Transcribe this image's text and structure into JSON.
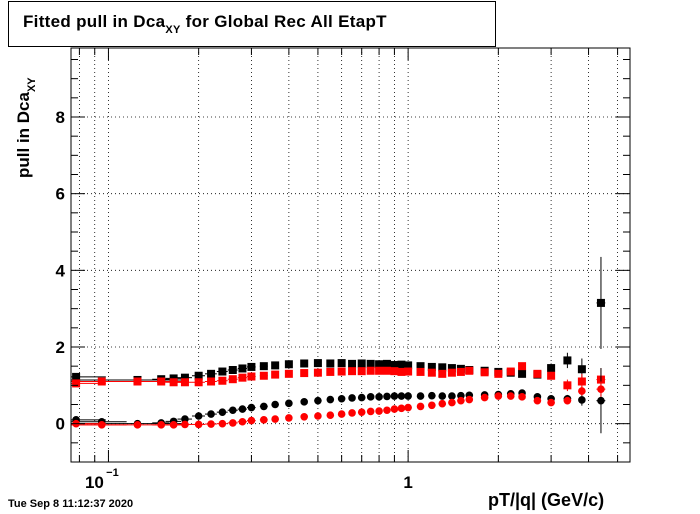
{
  "title": {
    "main": "Fitted pull in Dca",
    "sub": "XY",
    "rest": " for Global Rec All EtapT"
  },
  "timestamp": "Tue Sep  8 11:12:37 2020",
  "chart_data": {
    "type": "scatter",
    "title": "Fitted pull in Dca_XY for Global Rec All EtapT",
    "xlabel": "pT/|q| (GeV/c)",
    "ylabel": {
      "main": "pull in Dca",
      "sub": "XY"
    },
    "xscale": "log",
    "xlim": [
      0.075,
      5.5
    ],
    "ylim": [
      -1,
      9.8
    ],
    "x_ticks": [
      {
        "value": 0.1,
        "base": "10",
        "exp": "−1"
      },
      {
        "value": 1,
        "base": "1",
        "exp": ""
      }
    ],
    "y_ticks": [
      0,
      2,
      4,
      6,
      8
    ],
    "grid": true,
    "colors": {
      "black": "#000000",
      "red": "#ff0000"
    },
    "series": [
      {
        "marker": "square",
        "color": "#000000",
        "x": [
          0.078,
          0.125,
          0.15,
          0.165,
          0.18,
          0.2,
          0.22,
          0.24,
          0.26,
          0.28,
          0.3,
          0.33,
          0.36,
          0.4,
          0.45,
          0.5,
          0.55,
          0.6,
          0.65,
          0.7,
          0.75,
          0.8,
          0.85,
          0.9,
          0.95,
          1.0,
          1.1,
          1.2,
          1.3,
          1.4,
          1.5,
          1.6,
          1.8,
          2.0,
          2.2,
          2.4,
          2.7,
          3.0,
          3.4,
          3.8,
          4.4
        ],
        "y": [
          1.22,
          1.14,
          1.16,
          1.18,
          1.2,
          1.25,
          1.3,
          1.36,
          1.4,
          1.44,
          1.48,
          1.5,
          1.52,
          1.55,
          1.57,
          1.58,
          1.57,
          1.58,
          1.56,
          1.57,
          1.56,
          1.55,
          1.56,
          1.53,
          1.54,
          1.52,
          1.5,
          1.48,
          1.47,
          1.45,
          1.43,
          1.4,
          1.38,
          1.35,
          1.33,
          1.3,
          1.28,
          1.45,
          1.65,
          1.42,
          3.15
        ],
        "yerr": [
          0.05,
          0.04,
          0.03,
          0.03,
          0.02,
          0.02,
          0.02,
          0.02,
          0.02,
          0.02,
          0.02,
          0.02,
          0.02,
          0.02,
          0.02,
          0.02,
          0.02,
          0.02,
          0.02,
          0.02,
          0.02,
          0.02,
          0.02,
          0.02,
          0.02,
          0.02,
          0.02,
          0.03,
          0.03,
          0.03,
          0.03,
          0.04,
          0.04,
          0.05,
          0.06,
          0.08,
          0.1,
          0.12,
          0.2,
          0.28,
          1.2
        ],
        "xerr": [
          0.02,
          0.06,
          0.01,
          0.01,
          0.01,
          0.01,
          0.01,
          0.01,
          0.01,
          0.01,
          0.01,
          0.01,
          0.01,
          0.01,
          0.01,
          0.01,
          0.01,
          0.01,
          0.01,
          0.01,
          0.01,
          0.01,
          0.01,
          0.01,
          0.01,
          0.01,
          0.02,
          0.02,
          0.02,
          0.02,
          0.02,
          0.03,
          0.03,
          0.04,
          0.05,
          0.06,
          0.07,
          0.08,
          0.1,
          0.1,
          0.15
        ]
      },
      {
        "marker": "square",
        "color": "#ff0000",
        "x": [
          0.078,
          0.095,
          0.125,
          0.15,
          0.165,
          0.18,
          0.2,
          0.22,
          0.24,
          0.26,
          0.28,
          0.3,
          0.33,
          0.36,
          0.4,
          0.45,
          0.5,
          0.55,
          0.6,
          0.65,
          0.7,
          0.75,
          0.8,
          0.85,
          0.9,
          0.95,
          1.0,
          1.1,
          1.2,
          1.3,
          1.4,
          1.5,
          1.6,
          1.8,
          2.0,
          2.2,
          2.4,
          2.7,
          3.0,
          3.4,
          3.8,
          4.4
        ],
        "y": [
          1.05,
          1.1,
          1.1,
          1.1,
          1.08,
          1.08,
          1.08,
          1.1,
          1.12,
          1.16,
          1.2,
          1.23,
          1.25,
          1.28,
          1.3,
          1.32,
          1.33,
          1.35,
          1.36,
          1.37,
          1.37,
          1.38,
          1.38,
          1.38,
          1.37,
          1.35,
          1.36,
          1.35,
          1.33,
          1.3,
          1.33,
          1.35,
          1.38,
          1.34,
          1.3,
          1.36,
          1.5,
          1.3,
          1.25,
          1.0,
          1.1,
          1.15
        ],
        "yerr": [
          0.04,
          0.03,
          0.03,
          0.02,
          0.02,
          0.02,
          0.02,
          0.02,
          0.02,
          0.02,
          0.02,
          0.02,
          0.02,
          0.02,
          0.02,
          0.02,
          0.02,
          0.02,
          0.02,
          0.02,
          0.02,
          0.02,
          0.02,
          0.02,
          0.02,
          0.02,
          0.02,
          0.02,
          0.02,
          0.02,
          0.02,
          0.03,
          0.03,
          0.03,
          0.04,
          0.05,
          0.07,
          0.08,
          0.1,
          0.15,
          0.2,
          0.3
        ],
        "xerr": [
          0.02,
          0.02,
          0.06,
          0.01,
          0.01,
          0.01,
          0.01,
          0.01,
          0.01,
          0.01,
          0.01,
          0.01,
          0.01,
          0.01,
          0.01,
          0.01,
          0.01,
          0.01,
          0.01,
          0.01,
          0.01,
          0.01,
          0.01,
          0.01,
          0.01,
          0.01,
          0.01,
          0.02,
          0.02,
          0.02,
          0.02,
          0.02,
          0.03,
          0.03,
          0.04,
          0.05,
          0.06,
          0.07,
          0.08,
          0.1,
          0.1,
          0.15
        ]
      },
      {
        "marker": "circle",
        "color": "#000000",
        "x": [
          0.078,
          0.095,
          0.125,
          0.15,
          0.165,
          0.18,
          0.2,
          0.22,
          0.24,
          0.26,
          0.28,
          0.3,
          0.33,
          0.36,
          0.4,
          0.45,
          0.5,
          0.55,
          0.6,
          0.65,
          0.7,
          0.75,
          0.8,
          0.85,
          0.9,
          0.95,
          1.0,
          1.1,
          1.2,
          1.3,
          1.4,
          1.5,
          1.6,
          1.8,
          2.0,
          2.2,
          2.4,
          2.7,
          3.0,
          3.4,
          3.8,
          4.4
        ],
        "y": [
          0.1,
          0.05,
          0.0,
          0.02,
          0.06,
          0.12,
          0.2,
          0.25,
          0.3,
          0.35,
          0.38,
          0.42,
          0.45,
          0.5,
          0.53,
          0.57,
          0.6,
          0.63,
          0.65,
          0.67,
          0.68,
          0.7,
          0.7,
          0.71,
          0.72,
          0.72,
          0.72,
          0.72,
          0.73,
          0.72,
          0.72,
          0.73,
          0.74,
          0.75,
          0.76,
          0.78,
          0.8,
          0.7,
          0.65,
          0.65,
          0.62,
          0.6
        ],
        "yerr": [
          0.04,
          0.03,
          0.03,
          0.02,
          0.02,
          0.02,
          0.02,
          0.02,
          0.02,
          0.02,
          0.02,
          0.02,
          0.02,
          0.02,
          0.02,
          0.02,
          0.02,
          0.02,
          0.02,
          0.02,
          0.02,
          0.02,
          0.02,
          0.02,
          0.02,
          0.02,
          0.02,
          0.02,
          0.02,
          0.02,
          0.02,
          0.03,
          0.03,
          0.03,
          0.04,
          0.05,
          0.06,
          0.07,
          0.08,
          0.1,
          0.15,
          0.85
        ],
        "xerr": [
          0.02,
          0.02,
          0.06,
          0.01,
          0.01,
          0.01,
          0.01,
          0.01,
          0.01,
          0.01,
          0.01,
          0.01,
          0.01,
          0.01,
          0.01,
          0.01,
          0.01,
          0.01,
          0.01,
          0.01,
          0.01,
          0.01,
          0.01,
          0.01,
          0.01,
          0.01,
          0.01,
          0.02,
          0.02,
          0.02,
          0.02,
          0.02,
          0.03,
          0.03,
          0.04,
          0.05,
          0.06,
          0.07,
          0.08,
          0.1,
          0.1,
          0.15
        ]
      },
      {
        "marker": "circle",
        "color": "#ff0000",
        "x": [
          0.078,
          0.095,
          0.125,
          0.15,
          0.165,
          0.18,
          0.2,
          0.22,
          0.24,
          0.26,
          0.28,
          0.3,
          0.33,
          0.36,
          0.4,
          0.45,
          0.5,
          0.55,
          0.6,
          0.65,
          0.7,
          0.75,
          0.8,
          0.85,
          0.9,
          0.95,
          1.0,
          1.1,
          1.2,
          1.3,
          1.4,
          1.5,
          1.6,
          1.8,
          2.0,
          2.2,
          2.4,
          2.7,
          3.0,
          3.4,
          3.8,
          4.4
        ],
        "y": [
          0.0,
          -0.03,
          -0.03,
          -0.03,
          -0.03,
          -0.02,
          -0.02,
          -0.01,
          0.0,
          0.02,
          0.05,
          0.08,
          0.1,
          0.12,
          0.15,
          0.18,
          0.2,
          0.22,
          0.25,
          0.28,
          0.3,
          0.32,
          0.33,
          0.35,
          0.38,
          0.4,
          0.42,
          0.45,
          0.48,
          0.52,
          0.55,
          0.6,
          0.63,
          0.68,
          0.72,
          0.72,
          0.7,
          0.6,
          0.55,
          0.6,
          0.85,
          0.9
        ],
        "yerr": [
          0.03,
          0.03,
          0.03,
          0.02,
          0.02,
          0.02,
          0.02,
          0.02,
          0.02,
          0.02,
          0.02,
          0.02,
          0.02,
          0.02,
          0.02,
          0.02,
          0.02,
          0.02,
          0.02,
          0.02,
          0.02,
          0.02,
          0.02,
          0.02,
          0.02,
          0.02,
          0.02,
          0.02,
          0.02,
          0.02,
          0.02,
          0.03,
          0.03,
          0.03,
          0.04,
          0.05,
          0.06,
          0.07,
          0.08,
          0.1,
          0.12,
          0.2
        ],
        "xerr": [
          0.02,
          0.02,
          0.06,
          0.01,
          0.01,
          0.01,
          0.01,
          0.01,
          0.01,
          0.01,
          0.01,
          0.01,
          0.01,
          0.01,
          0.01,
          0.01,
          0.01,
          0.01,
          0.01,
          0.01,
          0.01,
          0.01,
          0.01,
          0.01,
          0.01,
          0.01,
          0.01,
          0.02,
          0.02,
          0.02,
          0.02,
          0.02,
          0.03,
          0.03,
          0.04,
          0.05,
          0.06,
          0.07,
          0.08,
          0.1,
          0.1,
          0.15
        ]
      }
    ]
  }
}
